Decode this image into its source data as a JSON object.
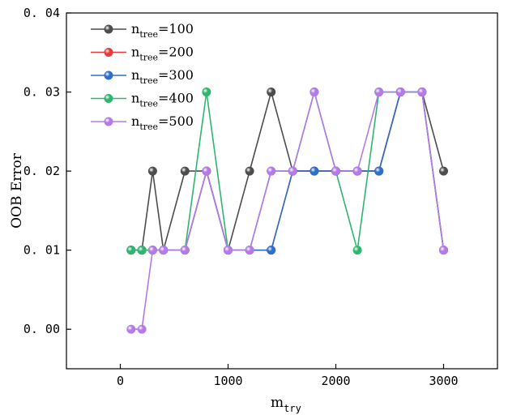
{
  "chart_data": {
    "type": "line",
    "title": "",
    "xlabel_main": "m",
    "xlabel_sub": "try",
    "ylabel": "OOB Error",
    "xlim": [
      -500,
      3500
    ],
    "ylim": [
      -0.005,
      0.04
    ],
    "x_ticks": [
      0,
      1000,
      2000,
      3000
    ],
    "x_tick_labels": [
      "0",
      "1000",
      "2000",
      "3000"
    ],
    "y_ticks": [
      0.0,
      0.01,
      0.02,
      0.03,
      0.04
    ],
    "y_tick_labels": [
      "0. 00",
      "0. 01",
      "0. 02",
      "0. 03",
      "0. 04"
    ],
    "grid": false,
    "legend_position": "top-left",
    "x": [
      100,
      200,
      300,
      400,
      600,
      800,
      1000,
      1200,
      1400,
      1600,
      1800,
      2000,
      2200,
      2400,
      2600,
      2800,
      3000
    ],
    "series": [
      {
        "name_main": "n",
        "name_sub": "tree",
        "name_suffix": "=100",
        "color": "#4d4d4d",
        "values": [
          0.01,
          0.01,
          0.02,
          0.01,
          0.02,
          0.02,
          0.01,
          0.02,
          0.03,
          0.02,
          0.02,
          0.02,
          0.02,
          0.02,
          0.03,
          0.03,
          0.02
        ]
      },
      {
        "name_main": "n",
        "name_sub": "tree",
        "name_suffix": "=200",
        "color": "#e83a3a",
        "values": [
          0.01,
          0.01,
          0.01,
          0.01,
          0.01,
          0.02,
          0.01,
          0.01,
          0.01,
          0.02,
          0.02,
          0.02,
          0.02,
          0.02,
          0.03,
          0.03,
          0.01
        ]
      },
      {
        "name_main": "n",
        "name_sub": "tree",
        "name_suffix": "=300",
        "color": "#2e6fcc",
        "values": [
          0.01,
          0.01,
          0.01,
          0.01,
          0.01,
          0.02,
          0.01,
          0.01,
          0.01,
          0.02,
          0.02,
          0.02,
          0.02,
          0.02,
          0.03,
          0.03,
          0.01
        ]
      },
      {
        "name_main": "n",
        "name_sub": "tree",
        "name_suffix": "=400",
        "color": "#2fb56f",
        "values": [
          0.01,
          0.01,
          0.01,
          0.01,
          0.01,
          0.03,
          0.01,
          0.01,
          0.02,
          0.02,
          0.03,
          0.02,
          0.01,
          0.03,
          0.03,
          0.03,
          0.01
        ]
      },
      {
        "name_main": "n",
        "name_sub": "tree",
        "name_suffix": "=500",
        "color": "#b57ae6",
        "values": [
          0.0,
          0.0,
          0.01,
          0.01,
          0.01,
          0.02,
          0.01,
          0.01,
          0.02,
          0.02,
          0.03,
          0.02,
          0.02,
          0.03,
          0.03,
          0.03,
          0.01
        ]
      }
    ]
  }
}
